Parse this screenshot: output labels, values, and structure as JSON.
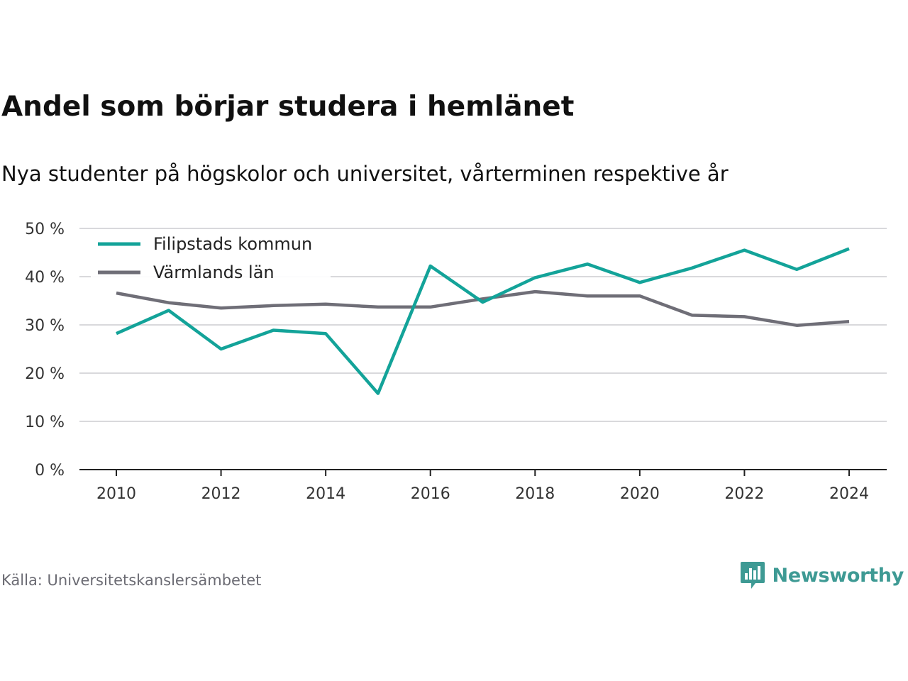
{
  "header": {
    "title": "Andel som börjar studera i hemlänet",
    "subtitle": "Nya studenter på högskolor och universitet, vårterminen respektive år"
  },
  "footer": {
    "source": "Källa: Universitetskanslersämbetet",
    "brand": "Newsworthy",
    "brand_icon": "newsworthy-logo-icon",
    "brand_color": "#3e9a94"
  },
  "chart_data": {
    "type": "line",
    "x": [
      2010,
      2011,
      2012,
      2013,
      2014,
      2015,
      2016,
      2017,
      2018,
      2019,
      2020,
      2021,
      2022,
      2023,
      2024
    ],
    "x_ticks": [
      "2010",
      "2012",
      "2014",
      "2016",
      "2018",
      "2020",
      "2022",
      "2024"
    ],
    "y_ticks": [
      "0 %",
      "10 %",
      "20 %",
      "30 %",
      "40 %",
      "50 %"
    ],
    "ylim": [
      0,
      50
    ],
    "grid": true,
    "legend_position": "top-left",
    "series": [
      {
        "name": "Filipstads kommun",
        "color": "#13a399",
        "values": [
          28.2,
          33.0,
          25.0,
          28.9,
          28.2,
          15.8,
          42.2,
          34.7,
          39.8,
          42.6,
          38.8,
          41.8,
          45.5,
          41.5,
          45.8
        ]
      },
      {
        "name": "Värmlands län",
        "color": "#6f6e77",
        "values": [
          36.6,
          34.6,
          33.5,
          34.0,
          34.3,
          33.7,
          33.7,
          35.4,
          36.9,
          36.0,
          36.0,
          32.0,
          31.7,
          29.9,
          30.7
        ]
      }
    ]
  }
}
